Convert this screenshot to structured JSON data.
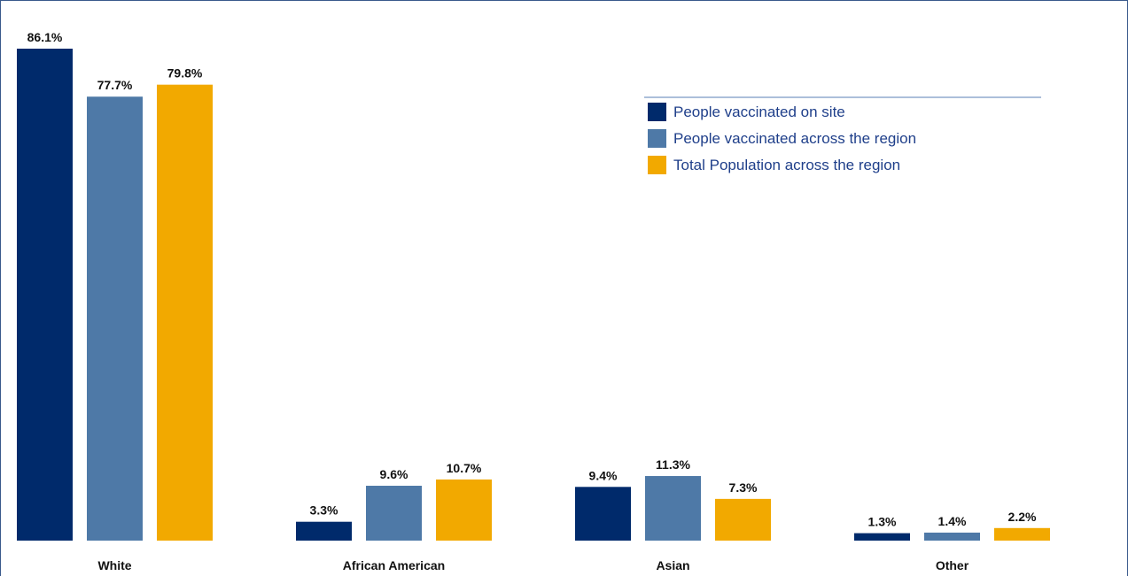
{
  "chart_data": {
    "type": "bar",
    "categories": [
      "White",
      "African American",
      "Asian",
      "Other"
    ],
    "series": [
      {
        "name": "People vaccinated on site",
        "color": "#002a6b",
        "values": [
          86.1,
          3.3,
          9.4,
          1.3
        ],
        "labels": [
          "86.1%",
          "3.3%",
          "9.4%",
          "1.3%"
        ]
      },
      {
        "name": "People vaccinated across the region",
        "color": "#4e79a7",
        "values": [
          77.7,
          9.6,
          11.3,
          1.4
        ],
        "labels": [
          "77.7%",
          "9.6%",
          "11.3%",
          "1.4%"
        ]
      },
      {
        "name": "Total Population across the region",
        "color": "#f2a900",
        "values": [
          79.8,
          10.7,
          7.3,
          2.2
        ],
        "labels": [
          "79.8%",
          "10.7%",
          "7.3%",
          "2.2%"
        ]
      }
    ],
    "unit": "%",
    "ylim": [
      0,
      86.1
    ],
    "grid": false,
    "legend_position": "top-right"
  }
}
